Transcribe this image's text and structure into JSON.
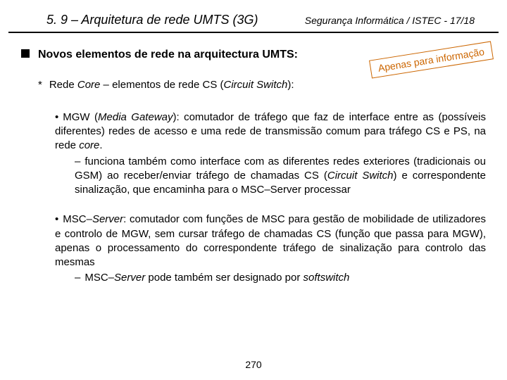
{
  "header": {
    "left": "5. 9 – Arquitetura de rede UMTS (3G)",
    "right": "Segurança  Informática  / ISTEC  -  17/18"
  },
  "main_bullet": "Novos elementos de rede na arquitectura UMTS:",
  "note": "Apenas para informação",
  "star_line_prefix": "Rede ",
  "star_line_core": "Core",
  "star_line_mid": " – elementos de rede CS (",
  "star_line_cs": "Circuit Switch",
  "star_line_end": "):",
  "mgw": {
    "label": "MGW (",
    "label_it": "Media Gateway",
    "label_end": "): comutador de tráfego que faz de interface entre as (possíveis diferentes) redes de acesso e uma rede de transmissão comum para tráfego CS e PS, na rede ",
    "core_it": "core",
    "period": ".",
    "dash_a": "funciona também como interface com as diferentes redes exteriores (tradicionais ou GSM) ao receber/enviar tráfego de chamadas CS (",
    "dash_cs_it": "Circuit Switch",
    "dash_b": ") e correspondente sinalização, que encaminha para o MSC–Server processar"
  },
  "msc": {
    "label": "MSC–",
    "label_it": "Server",
    "body": ": comutador com funções de MSC para gestão de mobilidade de utilizadores e controlo de MGW, sem cursar tráfego de chamadas CS (função que passa para MGW), apenas o processamento do correspondente tráfego de sinalização para controlo das mesmas",
    "dash_a": "MSC–",
    "dash_it1": "Server",
    "dash_b": " pode também ser designado por ",
    "dash_it2": "softswitch"
  },
  "page_number": "270"
}
